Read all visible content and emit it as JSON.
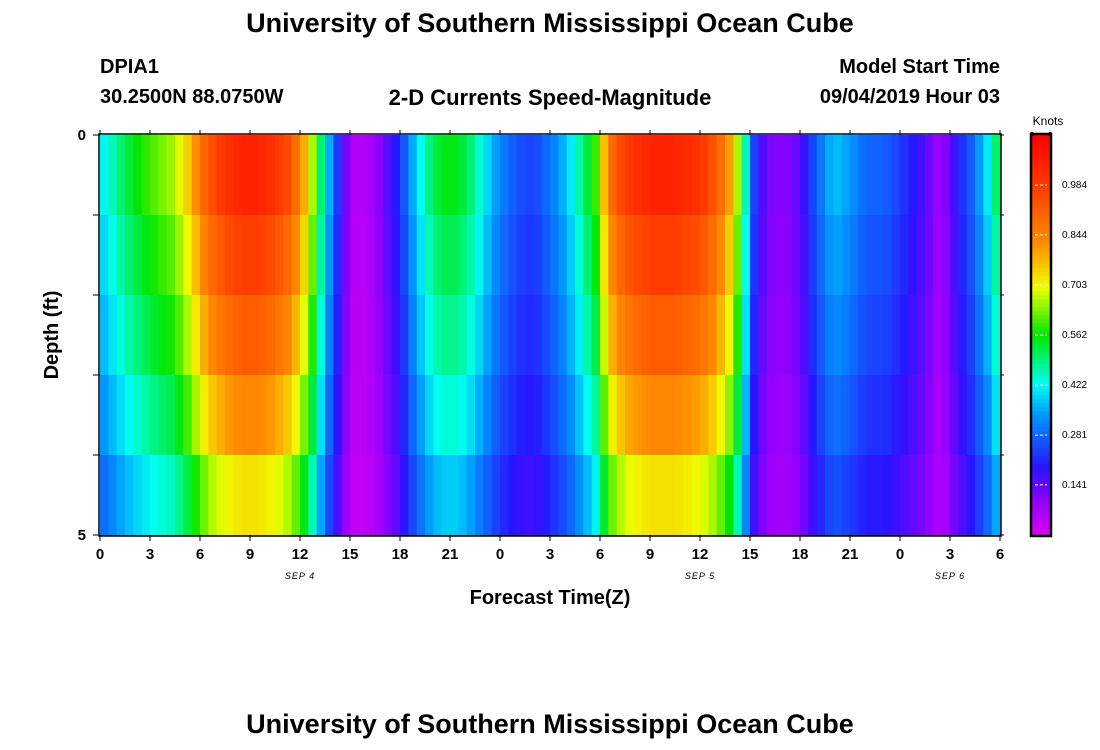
{
  "page": {
    "title": "University of Southern Mississippi Ocean Cube",
    "footer_title": "University of Southern Mississippi Ocean Cube"
  },
  "header": {
    "station_id": "DPIA1",
    "coords": "30.2500N 88.0750W",
    "subtitle": "2-D Currents Speed-Magnitude",
    "model_label": "Model Start Time",
    "model_time": "09/04/2019 Hour 03"
  },
  "chart_data": {
    "type": "heatmap",
    "title": "2-D Currents Speed-Magnitude",
    "xlabel": "Forecast Time(Z)",
    "ylabel": "Depth (ft)",
    "x_tick_labels": [
      "0",
      "3",
      "6",
      "9",
      "12",
      "15",
      "18",
      "21",
      "0",
      "3",
      "6",
      "9",
      "12",
      "15",
      "18",
      "21",
      "0",
      "3",
      "6"
    ],
    "x_hours_range": [
      0,
      54
    ],
    "x_date_labels": [
      {
        "label": "SEP 4",
        "hour": 12
      },
      {
        "label": "SEP 5",
        "hour": 36
      },
      {
        "label": "SEP 6",
        "hour": 51
      }
    ],
    "y_tick_labels": [
      "0",
      "5"
    ],
    "ylim": [
      0,
      5
    ],
    "depth_bands": 5,
    "colorbar": {
      "label": "Knots",
      "min": 0.0,
      "max": 1.125,
      "tick_values": [
        0.141,
        0.281,
        0.422,
        0.562,
        0.703,
        0.844,
        0.984
      ],
      "tick_labels": [
        "0.141",
        "0.281",
        "0.422",
        "0.562",
        "0.703",
        "0.844",
        "0.984"
      ]
    },
    "speed_profile_by_hour": [
      [
        0,
        0.4
      ],
      [
        1.5,
        0.52
      ],
      [
        3,
        0.6
      ],
      [
        4.5,
        0.66
      ],
      [
        5.5,
        0.78
      ],
      [
        6.5,
        0.93
      ],
      [
        7.5,
        1.0
      ],
      [
        8.5,
        1.04
      ],
      [
        9.5,
        1.04
      ],
      [
        10.5,
        1.0
      ],
      [
        11.5,
        0.93
      ],
      [
        12.5,
        0.74
      ],
      [
        13.5,
        0.42
      ],
      [
        14.3,
        0.22
      ],
      [
        15,
        0.07
      ],
      [
        15.5,
        0.04
      ],
      [
        16.5,
        0.08
      ],
      [
        18,
        0.22
      ],
      [
        19,
        0.4
      ],
      [
        20,
        0.52
      ],
      [
        21,
        0.56
      ],
      [
        22,
        0.52
      ],
      [
        23,
        0.42
      ],
      [
        24,
        0.32
      ],
      [
        25,
        0.26
      ],
      [
        26,
        0.24
      ],
      [
        27,
        0.3
      ],
      [
        28,
        0.38
      ],
      [
        29,
        0.5
      ],
      [
        29.8,
        0.6
      ],
      [
        30.5,
        0.86
      ],
      [
        31.5,
        0.98
      ],
      [
        33,
        1.04
      ],
      [
        34.5,
        1.04
      ],
      [
        36,
        1.0
      ],
      [
        37,
        0.92
      ],
      [
        38,
        0.76
      ],
      [
        38.7,
        0.48
      ],
      [
        39.3,
        0.22
      ],
      [
        40,
        0.12
      ],
      [
        41,
        0.1
      ],
      [
        42,
        0.14
      ],
      [
        43,
        0.28
      ],
      [
        44,
        0.38
      ],
      [
        45,
        0.34
      ],
      [
        46,
        0.28
      ],
      [
        47,
        0.28
      ],
      [
        48,
        0.24
      ],
      [
        49,
        0.18
      ],
      [
        49.7,
        0.14
      ],
      [
        50,
        0.08
      ],
      [
        50.7,
        0.1
      ],
      [
        51.5,
        0.2
      ],
      [
        52.3,
        0.28
      ],
      [
        53.2,
        0.4
      ],
      [
        54,
        0.55
      ]
    ],
    "depth_band_factor": [
      1.0,
      0.94,
      0.88,
      0.8,
      0.7
    ]
  }
}
